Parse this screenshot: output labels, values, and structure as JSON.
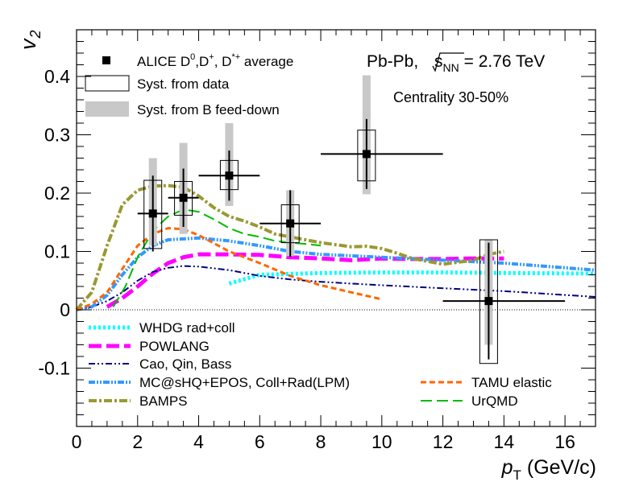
{
  "chart_data": {
    "type": "scatter",
    "title": "",
    "xlabel": {
      "main": "p",
      "sub": "T",
      "unit": " (GeV/c)"
    },
    "ylabel": {
      "main": "v",
      "sub": "2"
    },
    "xlim": [
      0,
      17
    ],
    "ylim": [
      -0.2,
      0.48
    ],
    "xticks": [
      0,
      2,
      4,
      6,
      8,
      10,
      12,
      14,
      16
    ],
    "xtick_labels": [
      "0",
      "2",
      "4",
      "6",
      "8",
      "10",
      "12",
      "14",
      "16"
    ],
    "yticks": [
      -0.1,
      0,
      0.1,
      0.2,
      0.3,
      0.4
    ],
    "ytick_labels": [
      "-0.1",
      "0",
      "0.1",
      "0.2",
      "0.3",
      "0.4"
    ],
    "annotations": {
      "system": "Pb-Pb, ",
      "energy_prefix": "s",
      "energy_sub": "NN",
      "energy_value": " = 2.76 TeV",
      "centrality": "Centrality 30-50%"
    },
    "legend_top": {
      "data_label": "ALICE D",
      "data_label_sup1": "0",
      "data_label_mid1": ",D",
      "data_label_sup2": "+",
      "data_label_mid2": ", D",
      "data_label_sup3": "*+",
      "data_label_end": " average",
      "syst_data": "Syst. from data",
      "syst_feeddown": "Syst. from B feed-down"
    },
    "legend_models": [
      {
        "name": "WHDG rad+coll",
        "color": "#00ffff",
        "dash": "3,3",
        "width": 5
      },
      {
        "name": "POWLANG",
        "color": "#ff00ff",
        "dash": "16,6",
        "width": 5
      },
      {
        "name": "Cao, Qin, Bass",
        "color": "#000080",
        "dash": "8,3,2,3,2,3",
        "width": 2
      },
      {
        "name": "MC@sHQ+EPOS, Coll+Rad(LPM)",
        "color": "#3399ff",
        "dash": "8,2,2,2,2,2",
        "width": 4
      },
      {
        "name": "BAMPS",
        "color": "#999933",
        "dash": "10,3,3,3",
        "width": 4
      },
      {
        "name": "TAMU elastic",
        "color": "#ff6600",
        "dash": "7,4",
        "width": 3
      },
      {
        "name": "UrQMD",
        "color": "#00bb00",
        "dash": "14,6",
        "width": 2
      }
    ],
    "data_points": [
      {
        "x": 2.5,
        "y": 0.165,
        "xlow": 2.0,
        "xhigh": 3.0,
        "stat": 0.065,
        "syst_data": [
          0.105,
          0.222
        ],
        "syst_fd": [
          0.11,
          0.26
        ]
      },
      {
        "x": 3.5,
        "y": 0.192,
        "xlow": 3.0,
        "xhigh": 4.0,
        "stat": 0.05,
        "syst_data": [
          0.162,
          0.22
        ],
        "syst_fd": [
          0.13,
          0.286
        ]
      },
      {
        "x": 5.0,
        "y": 0.23,
        "xlow": 4.0,
        "xhigh": 6.0,
        "stat": 0.043,
        "syst_data": [
          0.206,
          0.256
        ],
        "syst_fd": [
          0.178,
          0.32
        ]
      },
      {
        "x": 7.0,
        "y": 0.148,
        "xlow": 6.0,
        "xhigh": 8.0,
        "stat": 0.057,
        "syst_data": [
          0.115,
          0.18
        ],
        "syst_fd": [
          0.092,
          0.205
        ]
      },
      {
        "x": 9.5,
        "y": 0.267,
        "xlow": 8.0,
        "xhigh": 12.0,
        "stat": 0.06,
        "syst_data": [
          0.221,
          0.308
        ],
        "syst_fd": [
          0.198,
          0.402
        ]
      },
      {
        "x": 13.5,
        "y": 0.015,
        "xlow": 12.0,
        "xhigh": 16.0,
        "stat": 0.1,
        "syst_data": [
          -0.092,
          0.12
        ],
        "syst_fd": [
          -0.06,
          0.12
        ]
      }
    ],
    "model_curves": [
      {
        "name": "WHDG rad+coll",
        "points": [
          [
            5,
            0.045
          ],
          [
            6,
            0.06
          ],
          [
            8,
            0.063
          ],
          [
            10,
            0.064
          ],
          [
            12,
            0.064
          ],
          [
            14,
            0.063
          ],
          [
            17,
            0.062
          ]
        ]
      },
      {
        "name": "POWLANG",
        "points": [
          [
            1.0,
            0.005
          ],
          [
            1.5,
            0.02
          ],
          [
            2,
            0.04
          ],
          [
            2.5,
            0.062
          ],
          [
            3,
            0.08
          ],
          [
            3.5,
            0.09
          ],
          [
            4,
            0.095
          ],
          [
            5,
            0.095
          ],
          [
            6,
            0.094
          ],
          [
            7,
            0.09
          ],
          [
            8,
            0.088
          ],
          [
            9,
            0.085
          ],
          [
            10,
            0.088
          ],
          [
            11,
            0.087
          ],
          [
            12,
            0.087
          ],
          [
            13,
            0.088
          ],
          [
            14,
            0.088
          ]
        ]
      },
      {
        "name": "Cao, Qin, Bass",
        "points": [
          [
            0,
            0
          ],
          [
            0.5,
            0.005
          ],
          [
            1,
            0.015
          ],
          [
            1.5,
            0.03
          ],
          [
            2,
            0.05
          ],
          [
            2.5,
            0.065
          ],
          [
            3,
            0.072
          ],
          [
            3.5,
            0.075
          ],
          [
            4,
            0.074
          ],
          [
            5,
            0.068
          ],
          [
            6,
            0.058
          ],
          [
            7,
            0.052
          ],
          [
            8,
            0.048
          ],
          [
            9,
            0.045
          ],
          [
            10,
            0.042
          ],
          [
            12,
            0.037
          ],
          [
            14,
            0.032
          ],
          [
            17,
            0.022
          ]
        ]
      },
      {
        "name": "MC@sHQ+EPOS, Coll+Rad(LPM)",
        "points": [
          [
            0,
            0
          ],
          [
            0.5,
            0.005
          ],
          [
            1,
            0.025
          ],
          [
            1.5,
            0.06
          ],
          [
            2,
            0.09
          ],
          [
            2.5,
            0.11
          ],
          [
            3,
            0.12
          ],
          [
            4,
            0.123
          ],
          [
            5,
            0.118
          ],
          [
            6,
            0.11
          ],
          [
            7,
            0.1
          ],
          [
            8,
            0.095
          ],
          [
            10,
            0.09
          ],
          [
            12,
            0.085
          ],
          [
            14,
            0.08
          ],
          [
            17,
            0.068
          ]
        ]
      },
      {
        "name": "BAMPS",
        "points": [
          [
            0,
            0
          ],
          [
            0.5,
            0.03
          ],
          [
            1,
            0.11
          ],
          [
            1.5,
            0.18
          ],
          [
            2,
            0.205
          ],
          [
            2.5,
            0.212
          ],
          [
            3,
            0.213
          ],
          [
            3.5,
            0.21
          ],
          [
            4,
            0.195
          ],
          [
            4.5,
            0.175
          ],
          [
            5,
            0.16
          ],
          [
            5.5,
            0.152
          ],
          [
            6,
            0.142
          ],
          [
            6.5,
            0.13
          ],
          [
            7,
            0.125
          ],
          [
            7.5,
            0.12
          ],
          [
            8,
            0.115
          ],
          [
            9,
            0.108
          ],
          [
            9.5,
            0.109
          ],
          [
            10,
            0.105
          ],
          [
            10.5,
            0.097
          ],
          [
            11,
            0.088
          ],
          [
            12,
            0.078
          ],
          [
            13,
            0.085
          ],
          [
            13.5,
            0.095
          ],
          [
            14,
            0.1
          ]
        ]
      },
      {
        "name": "TAMU elastic",
        "points": [
          [
            0,
            0
          ],
          [
            0.5,
            0.01
          ],
          [
            1,
            0.03
          ],
          [
            1.5,
            0.07
          ],
          [
            2,
            0.11
          ],
          [
            2.5,
            0.13
          ],
          [
            3,
            0.14
          ],
          [
            3.5,
            0.138
          ],
          [
            4,
            0.128
          ],
          [
            5,
            0.1
          ],
          [
            6,
            0.08
          ],
          [
            7,
            0.058
          ],
          [
            8,
            0.042
          ],
          [
            9,
            0.03
          ],
          [
            10,
            0.018
          ]
        ]
      },
      {
        "name": "UrQMD",
        "points": [
          [
            1.2,
            0.005
          ],
          [
            1.6,
            0.04
          ],
          [
            2,
            0.09
          ],
          [
            2.5,
            0.135
          ],
          [
            3,
            0.16
          ],
          [
            3.5,
            0.172
          ],
          [
            4,
            0.168
          ],
          [
            4.5,
            0.155
          ],
          [
            5,
            0.14
          ],
          [
            5.5,
            0.13
          ],
          [
            6,
            0.125
          ],
          [
            6.5,
            0.118
          ],
          [
            7,
            0.115
          ],
          [
            7.5,
            0.113
          ],
          [
            8,
            0.11
          ]
        ]
      }
    ]
  }
}
